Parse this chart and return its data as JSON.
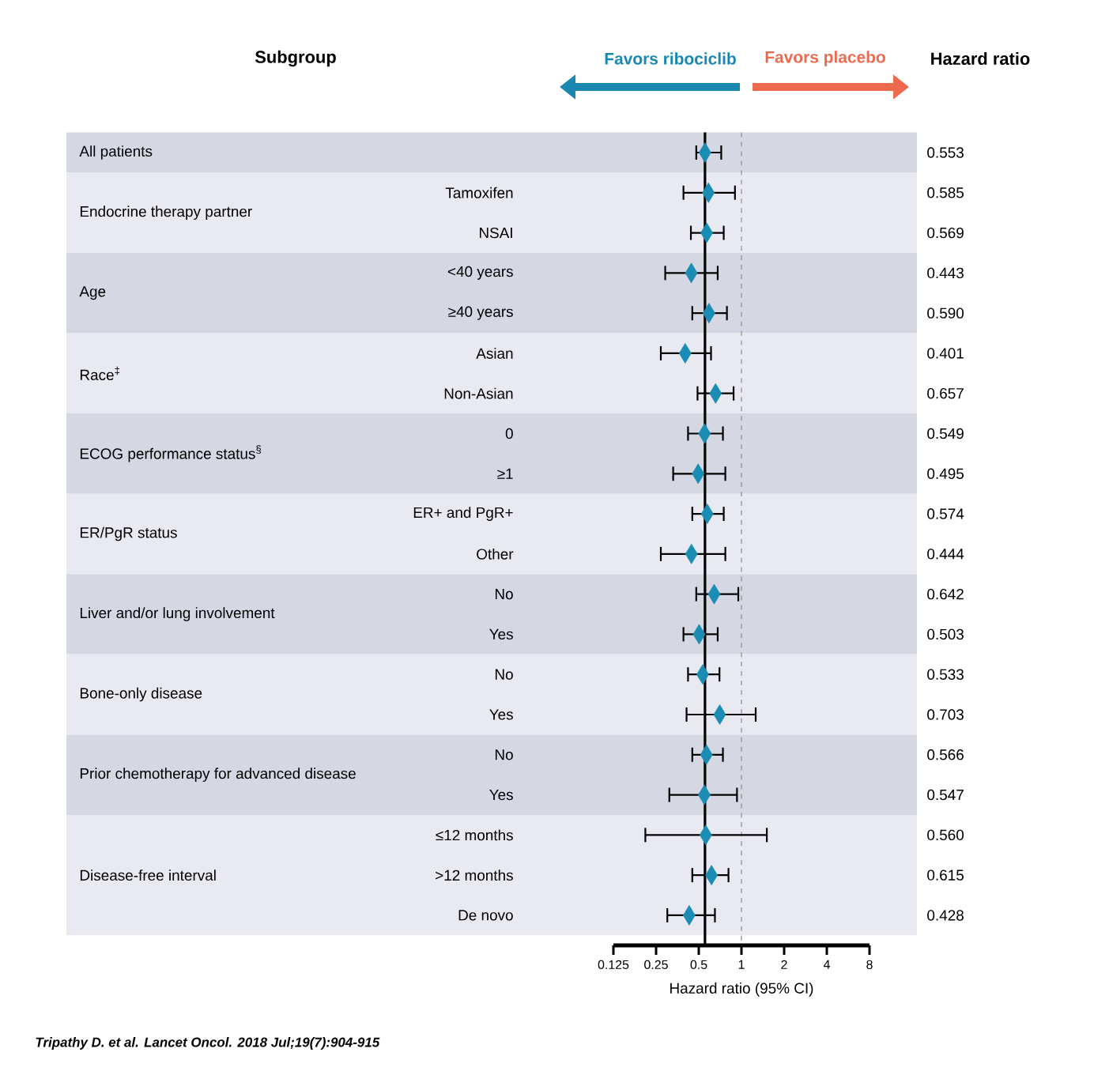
{
  "chart_data": {
    "type": "scatter",
    "orientation": "horizontal",
    "xlabel": "Hazard ratio (95% CI)",
    "categories": [
      null,
      "Tamoxifen",
      "NSAI",
      "<40 years",
      "≥40 years",
      "Asian",
      "Non-Asian",
      "0",
      "≥1",
      "ER+ and PgR+",
      "Other",
      "No",
      "Yes",
      "No",
      "Yes",
      "No",
      "Yes",
      "≤12 months",
      ">12 months",
      "De novo"
    ],
    "values": [
      0.553,
      0.585,
      0.569,
      0.443,
      0.59,
      0.401,
      0.657,
      0.549,
      0.495,
      0.574,
      0.444,
      0.642,
      0.503,
      0.533,
      0.703,
      0.566,
      0.547,
      0.56,
      0.615,
      0.428
    ],
    "value_labels": [
      "0.553",
      "0.585",
      "0.569",
      "0.443",
      "0.590",
      "0.401",
      "0.657",
      "0.549",
      "0.495",
      "0.574",
      "0.444",
      "0.642",
      "0.503",
      "0.533",
      "0.703",
      "0.566",
      "0.547",
      "0.560",
      "0.615",
      "0.428"
    ],
    "errors": [
      [
        0.48,
        0.72
      ],
      [
        0.39,
        0.9
      ],
      [
        0.44,
        0.75
      ],
      [
        0.29,
        0.68
      ],
      [
        0.45,
        0.79
      ],
      [
        0.27,
        0.61
      ],
      [
        0.49,
        0.88
      ],
      [
        0.42,
        0.74
      ],
      [
        0.33,
        0.77
      ],
      [
        0.45,
        0.75
      ],
      [
        0.27,
        0.77
      ],
      [
        0.48,
        0.95
      ],
      [
        0.39,
        0.68
      ],
      [
        0.42,
        0.7
      ],
      [
        0.41,
        1.26
      ],
      [
        0.45,
        0.74
      ],
      [
        0.31,
        0.93
      ],
      [
        0.21,
        1.51
      ],
      [
        0.45,
        0.81
      ],
      [
        0.3,
        0.65
      ]
    ],
    "color": "#1b8db5",
    "marker": "diamond",
    "log": "x",
    "xlim": [
      0.125,
      8
    ],
    "xticks": [
      0.125,
      0.25,
      0.5,
      1,
      2,
      4,
      8
    ],
    "ref_lines": [
      {
        "axis": "x",
        "value": 0.553,
        "color": "#000000",
        "line_style": "solid"
      },
      {
        "axis": "x",
        "value": 1,
        "color": "#8a8a8a",
        "line_style": "dashed"
      }
    ],
    "annotations": [
      "Subgroup",
      "Favors ribociclib",
      "Favors placebo",
      "Hazard ratio",
      "Tripathy D. et al. Lancet Oncol. 2018 Jul;19(7):904-915",
      "All patients",
      "Endocrine therapy partner",
      "Age",
      "Race$^{‡}$",
      "ECOG performance status$^{§}$",
      "ER/PgR status",
      "Liver and/or lung involvement",
      "Bone-only disease",
      "Prior chemotherapy for advanced disease",
      "Disease-free interval"
    ]
  }
}
